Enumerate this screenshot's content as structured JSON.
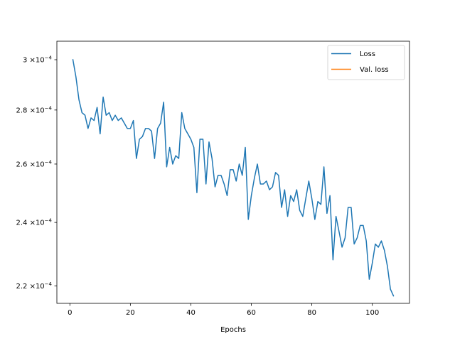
{
  "chart_data": {
    "type": "line",
    "title": "",
    "xlabel": "Epochs",
    "ylabel": "",
    "yscale": "log",
    "xlim": [
      -4.3,
      112.3
    ],
    "ylim": [
      0.0002148,
      0.0003077
    ],
    "grid": false,
    "legend_position": "top-right",
    "x_ticks": [
      0,
      20,
      40,
      60,
      80,
      100
    ],
    "x_tick_labels": [
      "0",
      "20",
      "40",
      "60",
      "80",
      "100"
    ],
    "y_ticks": [
      0.00022,
      0.00024,
      0.00026,
      0.00028,
      0.0003
    ],
    "y_tick_labels": [
      {
        "mant": "2.2",
        "exp": "−4"
      },
      {
        "mant": "2.4",
        "exp": "−4"
      },
      {
        "mant": "2.6",
        "exp": "−4"
      },
      {
        "mant": "2.8",
        "exp": "−4"
      },
      {
        "mant": "3",
        "exp": "−4"
      }
    ],
    "y_tick_mult": "×10",
    "series": [
      {
        "name": "Loss",
        "color": "#1f77b4",
        "x": [
          1,
          2,
          3,
          4,
          5,
          6,
          7,
          8,
          9,
          10,
          11,
          12,
          13,
          14,
          15,
          16,
          17,
          18,
          19,
          20,
          21,
          22,
          23,
          24,
          25,
          26,
          27,
          28,
          29,
          30,
          31,
          32,
          33,
          34,
          35,
          36,
          37,
          38,
          39,
          40,
          41,
          42,
          43,
          44,
          45,
          46,
          47,
          48,
          49,
          50,
          51,
          52,
          53,
          54,
          55,
          56,
          57,
          58,
          59,
          60,
          61,
          62,
          63,
          64,
          65,
          66,
          67,
          68,
          69,
          70,
          71,
          72,
          73,
          74,
          75,
          76,
          77,
          78,
          79,
          80,
          81,
          82,
          83,
          84,
          85,
          86,
          87,
          88,
          89,
          90,
          91,
          92,
          93,
          94,
          95,
          96,
          97,
          98,
          99,
          100,
          101,
          102,
          103,
          104,
          105,
          106,
          107
        ],
        "values": [
          0.0003,
          0.000293,
          0.000284,
          0.000279,
          0.000278,
          0.000273,
          0.000277,
          0.000276,
          0.000281,
          0.000271,
          0.000285,
          0.000278,
          0.000279,
          0.000276,
          0.000278,
          0.000276,
          0.000277,
          0.000275,
          0.000273,
          0.000273,
          0.000276,
          0.000262,
          0.000269,
          0.00027,
          0.000273,
          0.000273,
          0.000272,
          0.000262,
          0.000273,
          0.000275,
          0.000283,
          0.000259,
          0.000266,
          0.00026,
          0.000263,
          0.000262,
          0.000279,
          0.000273,
          0.000271,
          0.000269,
          0.000266,
          0.00025,
          0.000269,
          0.000269,
          0.000253,
          0.000268,
          0.000262,
          0.000252,
          0.000256,
          0.000256,
          0.000253,
          0.000249,
          0.000258,
          0.000258,
          0.000254,
          0.00026,
          0.000256,
          0.000266,
          0.000241,
          0.000249,
          0.000255,
          0.00026,
          0.000253,
          0.000253,
          0.000254,
          0.000251,
          0.000252,
          0.000257,
          0.000256,
          0.000245,
          0.000251,
          0.000242,
          0.000249,
          0.000247,
          0.000251,
          0.000244,
          0.000242,
          0.000248,
          0.000254,
          0.000248,
          0.000241,
          0.000247,
          0.000246,
          0.000259,
          0.000243,
          0.000249,
          0.000228,
          0.000242,
          0.000237,
          0.000232,
          0.000235,
          0.000245,
          0.000245,
          0.000233,
          0.000235,
          0.000239,
          0.000239,
          0.000234,
          0.000222,
          0.000227,
          0.000233,
          0.000232,
          0.000234,
          0.000231,
          0.000226,
          0.000219,
          0.000217
        ]
      },
      {
        "name": "Val. loss",
        "color": "#ff7f0e",
        "x": [],
        "values": []
      }
    ]
  }
}
